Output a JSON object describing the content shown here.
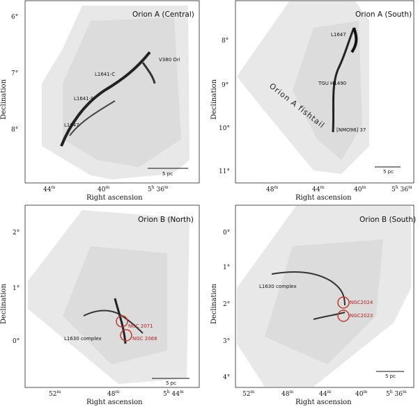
{
  "figure": {
    "xlabel": "Right ascension",
    "ylabel": "Declination",
    "colors": {
      "frame": "#222222",
      "circle": "#c0392b",
      "label_red": "#b22222",
      "cloud": "#e6e6e6",
      "filament": "#111111"
    }
  },
  "panels": [
    {
      "title": "Orion A (Central)",
      "xticks": [
        "44",
        "40",
        "5",
        "36"
      ],
      "xtick_units": [
        "m",
        "m",
        "h",
        "m"
      ],
      "yticks": [
        "6°",
        "7°",
        "8°"
      ],
      "labels": [
        "V380 Ori",
        "L1641-C",
        "L1641-S",
        "L1647"
      ],
      "scale": "5 pc"
    },
    {
      "title": "Orion A (South)",
      "xticks": [
        "48",
        "44",
        "40",
        "5",
        "36"
      ],
      "xtick_units": [
        "m",
        "m",
        "m",
        "h",
        "m"
      ],
      "yticks": [
        "8°",
        "9°",
        "10°",
        "11°"
      ],
      "labels": [
        "L1647",
        "TGU H1490",
        "[NMO98] 37"
      ],
      "fishtail": "Orion A fishtail",
      "scale": "5 pc"
    },
    {
      "title": "Orion B (North)",
      "xticks": [
        "52",
        "48",
        "5",
        "44"
      ],
      "xtick_units": [
        "m",
        "m",
        "h",
        "m"
      ],
      "yticks": [
        "2°",
        "1°",
        "0°"
      ],
      "labels": [
        "L1630 complex"
      ],
      "red_labels": [
        "NGC 2071",
        "NGC 2068"
      ],
      "scale": "5 pc"
    },
    {
      "title": "Orion B (South)",
      "xticks": [
        "52",
        "48",
        "44",
        "40",
        "5",
        "36"
      ],
      "xtick_units": [
        "m",
        "m",
        "m",
        "m",
        "h",
        "m"
      ],
      "yticks": [
        "0°",
        "1°",
        "2°",
        "3°",
        "4°"
      ],
      "labels": [
        "L1630 complex"
      ],
      "red_labels": [
        "NGC2024",
        "NGC2023"
      ],
      "scale": "5 pc"
    }
  ]
}
